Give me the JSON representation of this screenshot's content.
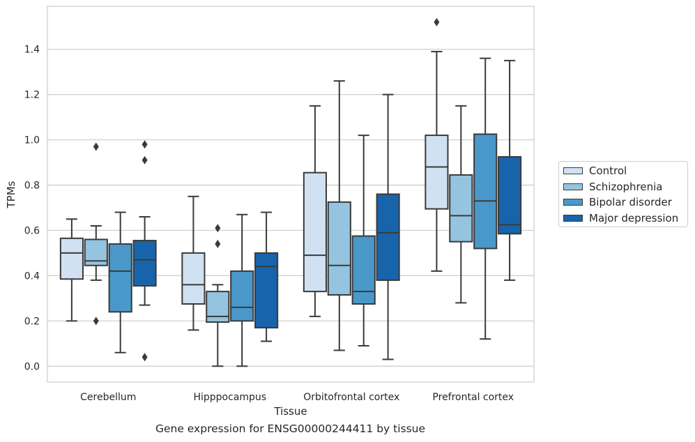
{
  "chart_data": {
    "type": "box",
    "title": "",
    "xlabel": "Tissue",
    "ylabel": "TPMs",
    "ylim": [
      -0.07,
      1.59
    ],
    "yticks": [
      0.0,
      0.2,
      0.4,
      0.6,
      0.8,
      1.0,
      1.2,
      1.4
    ],
    "ytick_labels": [
      "0.0",
      "0.2",
      "0.4",
      "0.6",
      "0.8",
      "1.0",
      "1.2",
      "1.4"
    ],
    "grid": "horizontal",
    "legend_position": "right",
    "categories": [
      "Cerebellum",
      "Hipppocampus",
      "Orbitofrontal cortex",
      "Prefrontal cortex"
    ],
    "series": [
      {
        "name": "Control",
        "color": "#d0e1f2",
        "boxes": [
          {
            "whislo": 0.2,
            "q1": 0.385,
            "med": 0.5,
            "q3": 0.565,
            "whishi": 0.65,
            "fliers": []
          },
          {
            "whislo": 0.16,
            "q1": 0.275,
            "med": 0.36,
            "q3": 0.5,
            "whishi": 0.75,
            "fliers": []
          },
          {
            "whislo": 0.22,
            "q1": 0.33,
            "med": 0.49,
            "q3": 0.855,
            "whishi": 1.15,
            "fliers": []
          },
          {
            "whislo": 0.42,
            "q1": 0.695,
            "med": 0.88,
            "q3": 1.02,
            "whishi": 1.39,
            "fliers": [
              1.52
            ]
          }
        ]
      },
      {
        "name": "Schizophrenia",
        "color": "#94c4df",
        "boxes": [
          {
            "whislo": 0.38,
            "q1": 0.445,
            "med": 0.465,
            "q3": 0.56,
            "whishi": 0.62,
            "fliers": [
              0.97,
              0.2
            ]
          },
          {
            "whislo": 0.0,
            "q1": 0.195,
            "med": 0.22,
            "q3": 0.33,
            "whishi": 0.36,
            "fliers": [
              0.61,
              0.54
            ]
          },
          {
            "whislo": 0.07,
            "q1": 0.315,
            "med": 0.445,
            "q3": 0.725,
            "whishi": 1.26,
            "fliers": []
          },
          {
            "whislo": 0.28,
            "q1": 0.55,
            "med": 0.665,
            "q3": 0.845,
            "whishi": 1.15,
            "fliers": []
          }
        ]
      },
      {
        "name": "Bipolar disorder",
        "color": "#4a98c9",
        "boxes": [
          {
            "whislo": 0.06,
            "q1": 0.24,
            "med": 0.42,
            "q3": 0.54,
            "whishi": 0.68,
            "fliers": []
          },
          {
            "whislo": 0.0,
            "q1": 0.2,
            "med": 0.26,
            "q3": 0.42,
            "whishi": 0.67,
            "fliers": []
          },
          {
            "whislo": 0.09,
            "q1": 0.275,
            "med": 0.33,
            "q3": 0.575,
            "whishi": 1.02,
            "fliers": []
          },
          {
            "whislo": 0.12,
            "q1": 0.52,
            "med": 0.73,
            "q3": 1.025,
            "whishi": 1.36,
            "fliers": []
          }
        ]
      },
      {
        "name": "Major depression",
        "color": "#1764ab",
        "boxes": [
          {
            "whislo": 0.27,
            "q1": 0.355,
            "med": 0.47,
            "q3": 0.555,
            "whishi": 0.66,
            "fliers": [
              0.98,
              0.91,
              0.04
            ]
          },
          {
            "whislo": 0.11,
            "q1": 0.17,
            "med": 0.44,
            "q3": 0.5,
            "whishi": 0.68,
            "fliers": []
          },
          {
            "whislo": 0.03,
            "q1": 0.38,
            "med": 0.59,
            "q3": 0.76,
            "whishi": 1.2,
            "fliers": []
          },
          {
            "whislo": 0.38,
            "q1": 0.585,
            "med": 0.625,
            "q3": 0.925,
            "whishi": 1.35,
            "fliers": []
          }
        ]
      }
    ]
  },
  "caption": "Gene expression for ENSG00000244411 by tissue"
}
